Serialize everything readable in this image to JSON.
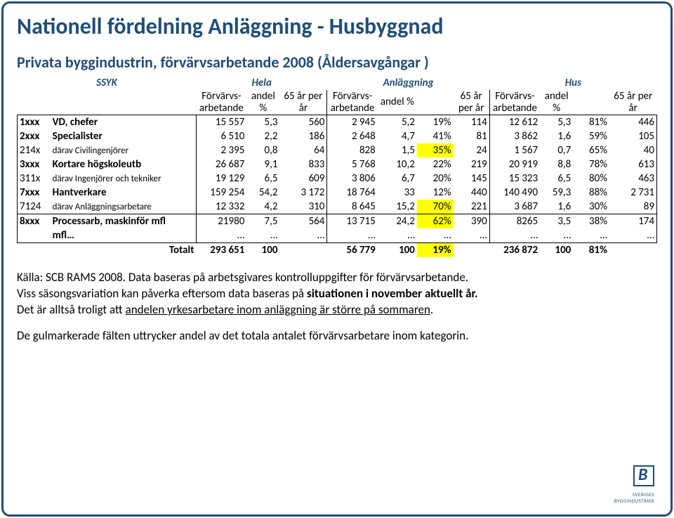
{
  "title": "Nationell fördelning Anläggning - Husbyggnad",
  "subtitle": "Privata byggindustrin, förvärvsarbetande 2008 (Åldersavgångar )",
  "section_labels": {
    "ssyk": "SSYK",
    "hela": "Hela",
    "anl": "Anläggning",
    "hus": "Hus"
  },
  "col_heads": {
    "g1a": "Förvärvs-\narbetande",
    "g1b": "andel\n%",
    "g1c": "65 år per\når",
    "g2a": "Förvärvs-\narbetande",
    "g2b": "andel %",
    "g2c": "65 år\nper år",
    "g3a": "Förvärvs-\narbetande",
    "g3b": "andel\n%",
    "g3c": "",
    "g3d": "65 år per\når"
  },
  "rows": [
    {
      "code": "1xxx",
      "name": "VD, chefer",
      "sub": false,
      "g1a": "15 557",
      "g1b": "5,3",
      "g1c": "560",
      "g2a": "2 945",
      "g2b": "5,2",
      "g2c": "19%",
      "g2d": "114",
      "g3a": "12 612",
      "g3b": "5,3",
      "g3c": "81%",
      "g3d": "446"
    },
    {
      "code": "2xxx",
      "name": "Specialister",
      "sub": false,
      "g1a": "6 510",
      "g1b": "2,2",
      "g1c": "186",
      "g2a": "2 648",
      "g2b": "4,7",
      "g2c": "41%",
      "g2d": "81",
      "g3a": "3 862",
      "g3b": "1,6",
      "g3c": "59%",
      "g3d": "105"
    },
    {
      "code": "214x",
      "name": "därav Civilingenjörer",
      "sub": true,
      "g1a": "2 395",
      "g1b": "0,8",
      "g1c": "64",
      "g2a": "828",
      "g2b": "1,5",
      "g2c": "35%",
      "g2d": "24",
      "hl2c": true,
      "g3a": "1 567",
      "g3b": "0,7",
      "g3c": "65%",
      "g3d": "40"
    },
    {
      "code": "3xxx",
      "name": "Kortare högskoleutb",
      "sub": false,
      "g1a": "26 687",
      "g1b": "9,1",
      "g1c": "833",
      "g2a": "5 768",
      "g2b": "10,2",
      "g2c": "22%",
      "g2d": "219",
      "g3a": "20 919",
      "g3b": "8,8",
      "g3c": "78%",
      "g3d": "613"
    },
    {
      "code": "311x",
      "name": "därav Ingenjörer och  tekniker",
      "sub": true,
      "g1a": "19 129",
      "g1b": "6,5",
      "g1c": "609",
      "g2a": "3 806",
      "g2b": "6,7",
      "g2c": "20%",
      "g2d": "145",
      "g3a": "15 323",
      "g3b": "6,5",
      "g3c": "80%",
      "g3d": "463"
    },
    {
      "code": "7xxx",
      "name": "Hantverkare",
      "sub": false,
      "g1a": "159 254",
      "g1b": "54,2",
      "g1c": "3 172",
      "g2a": "18 764",
      "g2b": "33",
      "g2c": "12%",
      "g2d": "440",
      "g3a": "140 490",
      "g3b": "59,3",
      "g3c": "88%",
      "g3d": "2 731"
    },
    {
      "code": "7124",
      "name": "därav Anläggningsarbetare",
      "sub": true,
      "g1a": "12 332",
      "g1b": "4,2",
      "g1c": "310",
      "g2a": "8 645",
      "g2b": "15,2",
      "g2c": "70%",
      "g2d": "221",
      "hl2c": true,
      "g3a": "3 687",
      "g3b": "1,6",
      "g3c": "30%",
      "g3d": "89"
    },
    {
      "code": "8xxx",
      "name": "Processarb, maskinför mfl",
      "sub": false,
      "gap": true,
      "g1a": "21980",
      "g1b": "7,5",
      "g1c": "564",
      "g2a": "13 715",
      "g2b": "24,2",
      "g2c": "62%",
      "g2d": "390",
      "hl2c": true,
      "g3a": "8265",
      "g3b": "3,5",
      "g3c": "38%",
      "g3d": "174"
    },
    {
      "code": "",
      "name": "mfl…",
      "sub": false,
      "g1a": "…",
      "g1b": "…",
      "g1c": "…",
      "g2a": "…",
      "g2b": "…",
      "g2c": "…",
      "g2d": "…",
      "g3a": "…",
      "g3b": "…",
      "g3c": "…",
      "g3d": "…"
    }
  ],
  "total": {
    "label": "Totalt",
    "g1a": "293 651",
    "g1b": "100",
    "g1c": "",
    "g2a": "56 779",
    "g2b": "100",
    "g2c": "19%",
    "g2d": "",
    "g3a": "236 872",
    "g3b": "100",
    "g3c": "81%",
    "g3d": ""
  },
  "notes": {
    "line1a": "Källa: SCB RAMS 2008. Data baseras på arbetsgivares kontrolluppgifter för förvärvsarbetande.",
    "line2a": "Viss säsongsvariation kan påverka eftersom data baseras på ",
    "line2b": "situationen i november aktuellt år.",
    "line3a": "Det  är alltså troligt att ",
    "line3b": "andelen yrkesarbetare inom anläggning är större på sommaren",
    "line3c": ".",
    "line4": "De gulmarkerade fälten uttrycker andel av det totala antalet förvärvsarbetare inom kategorin."
  },
  "logo_text": "SVERIGES\nBYGGINDUSTRIER"
}
